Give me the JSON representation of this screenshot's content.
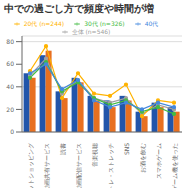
{
  "chart_data": {
    "type": "bar",
    "title": "中での過ごし方で頻度や時間が増",
    "categories": [
      "ネットショッピング",
      "動画共有サービス",
      "読書",
      "動画配信サービス",
      "音楽視聴",
      "筋トレ・ストレッチ",
      "SNS",
      "お酒を飲む",
      "スマホゲーム",
      "ゲーム機を使った"
    ],
    "series": [
      {
        "type": "bar",
        "color": "#2255AA",
        "values": [
          52,
          68,
          36,
          48,
          32,
          28,
          32,
          18,
          26,
          22
        ]
      },
      {
        "type": "bar",
        "color": "#E87020",
        "values": [
          48,
          72,
          30,
          44,
          28,
          22,
          28,
          14,
          22,
          18
        ]
      },
      {
        "type": "line",
        "name": "全体 (n=546)",
        "color": "#A0A0A0",
        "marker": "circle",
        "values": [
          50,
          65,
          34,
          46,
          30,
          26,
          30,
          16,
          24,
          20
        ]
      },
      {
        "type": "line",
        "name": "20代 (n=244)",
        "color": "#FFB300",
        "marker": "circle",
        "values": [
          54,
          76,
          30,
          52,
          34,
          32,
          42,
          14,
          28,
          26
        ]
      },
      {
        "type": "line",
        "name": "30代 (n=326)",
        "color": "#44BB44",
        "marker": "circle",
        "values": [
          48,
          62,
          36,
          44,
          30,
          24,
          28,
          18,
          22,
          16
        ]
      },
      {
        "type": "line",
        "name": "40代",
        "color": "#4488DD",
        "marker": "circle",
        "values": [
          52,
          60,
          38,
          46,
          28,
          22,
          26,
          20,
          26,
          22
        ]
      }
    ],
    "ylim": [
      0,
      85
    ],
    "yticks": [
      0,
      20,
      40,
      60,
      80
    ],
    "grid": true,
    "legend": "top"
  }
}
